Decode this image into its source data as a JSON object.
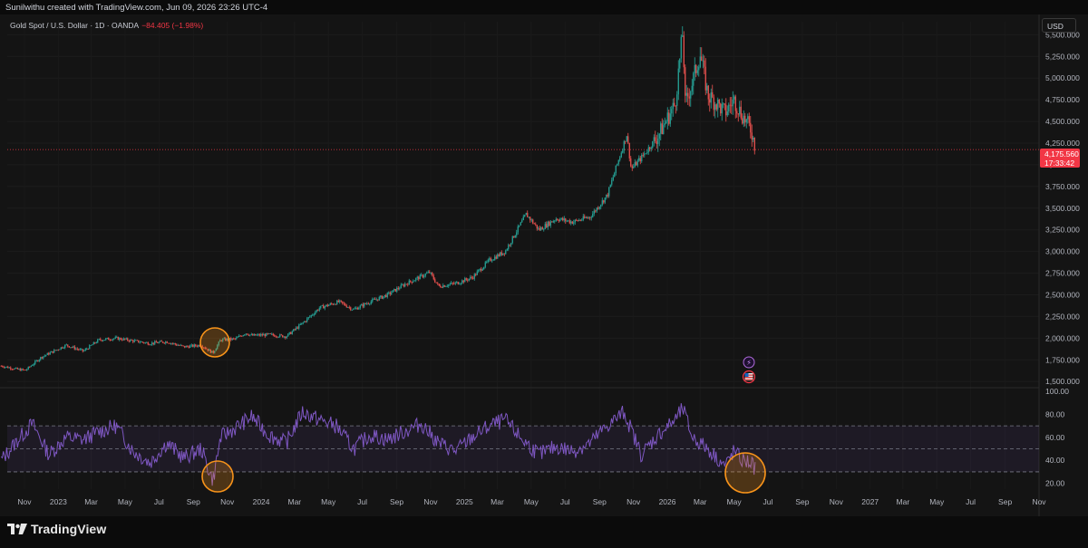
{
  "header": {
    "attribution": "Sunilwithu created with TradingView.com, Jun 09, 2026 23:26 UTC-4"
  },
  "legend": {
    "symbol": "Gold Spot / U.S. Dollar · 1D · OANDA",
    "change": "−84.405 (−1.98%)"
  },
  "currency_button": "USD",
  "last_price": {
    "value": "4,175.560",
    "countdown": "17:33:42"
  },
  "chart_data": [
    {
      "type": "candlestick",
      "series": [
        {
          "name": "Gold Spot / U.S. Dollar · 1D · OANDA"
        }
      ],
      "y_ticks": [
        "5,500.000",
        "5,250.000",
        "5,000.000",
        "4,750.000",
        "4,500.000",
        "4,250.000",
        "4,000.000",
        "3,750.000",
        "3,500.000",
        "3,250.000",
        "3,000.000",
        "2,750.000",
        "2,500.000",
        "2,250.000",
        "2,000.000",
        "1,750.000",
        "1,500.000"
      ],
      "ylim": [
        1450,
        5650
      ],
      "x": [
        "2022-09-20",
        "2022-10-20",
        "2022-11-03",
        "2022-12-01",
        "2023-01-15",
        "2023-02-15",
        "2023-03-15",
        "2023-04-15",
        "2023-05-15",
        "2023-06-15",
        "2023-07-15",
        "2023-08-15",
        "2023-09-15",
        "2023-10-06",
        "2023-10-20",
        "2023-11-15",
        "2023-12-04",
        "2023-12-15",
        "2024-01-15",
        "2024-02-15",
        "2024-03-15",
        "2024-04-15",
        "2024-05-20",
        "2024-06-15",
        "2024-07-15",
        "2024-08-15",
        "2024-09-15",
        "2024-10-30",
        "2024-11-15",
        "2024-12-15",
        "2025-01-15",
        "2025-02-15",
        "2025-03-15",
        "2025-04-22",
        "2025-05-15",
        "2025-06-15",
        "2025-07-15",
        "2025-08-15",
        "2025-09-15",
        "2025-10-20",
        "2025-10-28",
        "2025-11-15",
        "2025-12-15",
        "2026-01-15",
        "2026-01-29",
        "2026-02-02",
        "2026-02-15",
        "2026-03-01",
        "2026-03-15",
        "2026-04-01",
        "2026-04-15",
        "2026-05-01",
        "2026-05-15",
        "2026-06-01",
        "2026-06-09"
      ],
      "values": [
        1680,
        1640,
        1630,
        1780,
        1920,
        1850,
        1980,
        2000,
        1970,
        1940,
        1960,
        1900,
        1920,
        1830,
        1980,
        1990,
        2060,
        2030,
        2040,
        2020,
        2170,
        2350,
        2420,
        2330,
        2420,
        2500,
        2620,
        2760,
        2600,
        2630,
        2700,
        2900,
        3000,
        3430,
        3250,
        3380,
        3340,
        3400,
        3650,
        4350,
        3950,
        4080,
        4330,
        4700,
        5550,
        4700,
        4950,
        5280,
        4800,
        4700,
        4600,
        4750,
        4580,
        4400,
        4175.56
      ]
    },
    {
      "type": "line",
      "series": [],
      "y_ticks": [
        "100.00",
        "80.00",
        "60.00",
        "40.00",
        "20.00"
      ],
      "ylim": [
        15,
        100
      ],
      "bands": [
        30,
        50,
        70
      ],
      "x_ticks": [
        "Nov",
        "2023",
        "Mar",
        "May",
        "Jul",
        "Sep",
        "Nov",
        "2024",
        "Mar",
        "May",
        "Jul",
        "Sep",
        "Nov",
        "2025",
        "Mar",
        "May",
        "Jul",
        "Sep",
        "Nov",
        "2026",
        "Mar",
        "May",
        "Jul",
        "Sep",
        "Nov",
        "2027",
        "Mar",
        "May",
        "Jul",
        "Sep",
        "Nov"
      ],
      "x": [
        "2022-09-20",
        "2022-10-15",
        "2022-11-15",
        "2022-12-15",
        "2023-01-15",
        "2023-02-15",
        "2023-03-15",
        "2023-04-15",
        "2023-05-15",
        "2023-06-15",
        "2023-07-15",
        "2023-08-15",
        "2023-09-15",
        "2023-10-06",
        "2023-10-20",
        "2023-11-15",
        "2023-12-15",
        "2024-01-15",
        "2024-02-15",
        "2024-03-15",
        "2024-04-15",
        "2024-05-15",
        "2024-06-15",
        "2024-07-15",
        "2024-08-15",
        "2024-09-15",
        "2024-10-15",
        "2024-11-15",
        "2024-12-15",
        "2025-01-15",
        "2025-02-15",
        "2025-03-15",
        "2025-04-15",
        "2025-05-15",
        "2025-06-15",
        "2025-07-15",
        "2025-08-15",
        "2025-09-15",
        "2025-10-15",
        "2025-11-15",
        "2025-12-15",
        "2026-01-15",
        "2026-01-29",
        "2026-02-15",
        "2026-03-15",
        "2026-04-15",
        "2026-05-01",
        "2026-05-15",
        "2026-06-01",
        "2026-06-09"
      ],
      "values": [
        40,
        55,
        72,
        45,
        60,
        58,
        65,
        70,
        48,
        38,
        55,
        42,
        50,
        22,
        60,
        68,
        78,
        62,
        55,
        82,
        75,
        70,
        50,
        62,
        58,
        65,
        72,
        55,
        48,
        60,
        70,
        75,
        58,
        45,
        52,
        48,
        55,
        70,
        82,
        45,
        62,
        75,
        85,
        60,
        50,
        35,
        48,
        40,
        38,
        32
      ]
    }
  ],
  "markers": {
    "event1": "⚡",
    "event2": "us-flag-icon"
  },
  "brand": {
    "name": "TradingView"
  },
  "colors": {
    "up": "#26a69a",
    "down": "#ef5350",
    "rsi_line": "#7e57c2",
    "highlight": "#f7931a",
    "price_tag": "#f23645"
  }
}
